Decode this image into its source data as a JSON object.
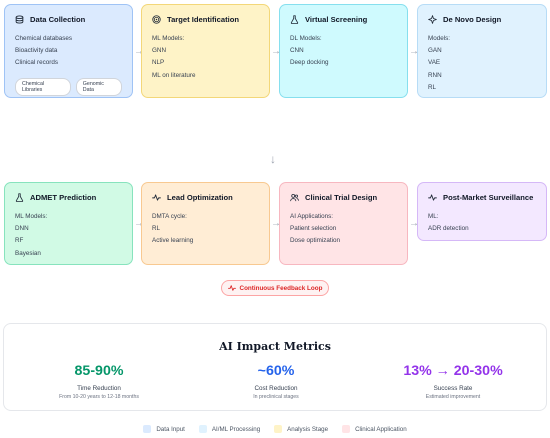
{
  "row1": {
    "data_collection": {
      "title": "Data Collection",
      "icon": "database-icon",
      "lines": [
        "Chemical databases",
        "Bioactivity data",
        "Clinical records"
      ],
      "tags": [
        "Chemical Libraries",
        "Genomic Data"
      ]
    },
    "target_identification": {
      "title": "Target Identification",
      "icon": "target-icon",
      "lines": [
        "ML Models:",
        "GNN",
        "NLP",
        "ML on literature"
      ]
    },
    "virtual_screening": {
      "title": "Virtual Screening",
      "icon": "flask-icon",
      "lines": [
        "DL Models:",
        "CNN",
        "Deep docking"
      ]
    },
    "de_novo_design": {
      "title": "De Novo Design",
      "icon": "sparkle-icon",
      "lines": [
        "Models:",
        "GAN",
        "VAE",
        "RNN",
        "RL"
      ]
    }
  },
  "row2": {
    "admet_prediction": {
      "title": "ADMET Prediction",
      "icon": "flask-icon",
      "lines": [
        "ML Models:",
        "DNN",
        "RF",
        "Bayesian"
      ]
    },
    "lead_optimization": {
      "title": "Lead Optimization",
      "icon": "pulse-icon",
      "lines": [
        "DMTA cycle:",
        "RL",
        "Active learning"
      ]
    },
    "clinical_trial_design": {
      "title": "Clinical Trial Design",
      "icon": "users-icon",
      "lines": [
        "AI Applications:",
        "Patient selection",
        "Dose optimization"
      ]
    },
    "post_market_surveillance": {
      "title": "Post-Market Surveillance",
      "icon": "pulse-icon",
      "lines": [
        "ML:",
        "ADR detection"
      ]
    }
  },
  "feedback_loop": {
    "label": "Continuous Feedback Loop",
    "icon": "pulse-icon"
  },
  "impact": {
    "title": "AI Impact Metrics",
    "metrics": [
      {
        "value": "85-90%",
        "label": "Time Reduction",
        "sub": "From 10-20 years to 12-18 months",
        "color": "#059669"
      },
      {
        "value": "~60%",
        "label": "Cost Reduction",
        "sub": "In preclinical stages",
        "color": "#2563eb"
      },
      {
        "value": "13% → 20-30%",
        "label": "Success Rate",
        "sub": "Estimated improvement",
        "color": "#9333ea"
      }
    ]
  },
  "legend": [
    {
      "label": "Data Input",
      "color": "#dbeafe"
    },
    {
      "label": "AI/ML Processing",
      "color": "#e0f2fe"
    },
    {
      "label": "Analysis Stage",
      "color": "#fef3c7"
    },
    {
      "label": "Clinical Application",
      "color": "#ffe4e6"
    }
  ]
}
